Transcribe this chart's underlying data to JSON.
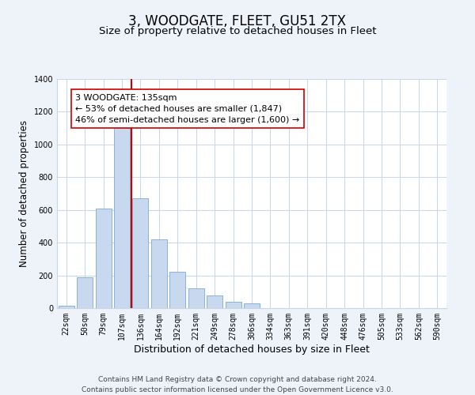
{
  "title": "3, WOODGATE, FLEET, GU51 2TX",
  "subtitle": "Size of property relative to detached houses in Fleet",
  "xlabel": "Distribution of detached houses by size in Fleet",
  "ylabel": "Number of detached properties",
  "bar_labels": [
    "22sqm",
    "50sqm",
    "79sqm",
    "107sqm",
    "136sqm",
    "164sqm",
    "192sqm",
    "221sqm",
    "249sqm",
    "278sqm",
    "306sqm",
    "334sqm",
    "363sqm",
    "391sqm",
    "420sqm",
    "448sqm",
    "476sqm",
    "505sqm",
    "533sqm",
    "562sqm",
    "590sqm"
  ],
  "bar_values": [
    15,
    190,
    610,
    1100,
    670,
    420,
    220,
    120,
    75,
    40,
    28,
    0,
    0,
    0,
    0,
    0,
    0,
    0,
    0,
    0,
    0
  ],
  "bar_color": "#c8d9ef",
  "bar_edge_color": "#7aaad0",
  "vline_color": "#cc0000",
  "annotation_text": "3 WOODGATE: 135sqm\n← 53% of detached houses are smaller (1,847)\n46% of semi-detached houses are larger (1,600) →",
  "annotation_box_color": "#ffffff",
  "annotation_box_edge": "#cc0000",
  "ylim": [
    0,
    1400
  ],
  "yticks": [
    0,
    200,
    400,
    600,
    800,
    1000,
    1200,
    1400
  ],
  "footer_line1": "Contains HM Land Registry data © Crown copyright and database right 2024.",
  "footer_line2": "Contains public sector information licensed under the Open Government Licence v3.0.",
  "background_color": "#eef2f9",
  "plot_bg_color": "#ffffff",
  "grid_color": "#c8d4e8",
  "title_fontsize": 12,
  "subtitle_fontsize": 9.5,
  "xlabel_fontsize": 9,
  "ylabel_fontsize": 8.5,
  "tick_fontsize": 7,
  "footer_fontsize": 6.5,
  "annotation_fontsize": 8
}
